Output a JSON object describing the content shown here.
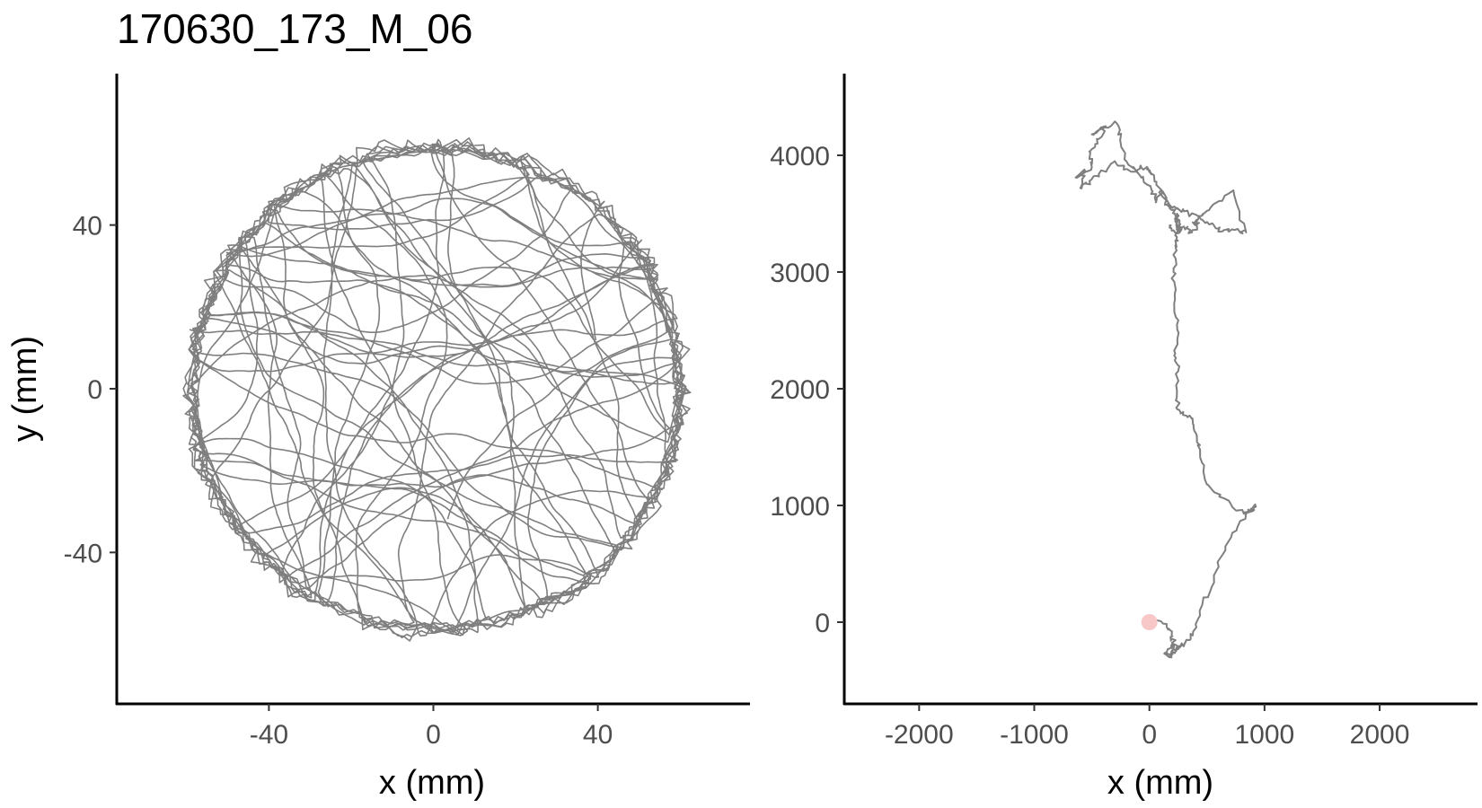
{
  "title": "170630_173_M_06",
  "colors": {
    "track": "#7f7f7f",
    "start_point": "#f8c8c8",
    "axis": "#000000",
    "tick_text": "#4d4d4d"
  },
  "chart_data": [
    {
      "type": "line",
      "panel": "left",
      "description_shape": "circular arena trajectory",
      "xlabel": "x (mm)",
      "ylabel": "y (mm)",
      "xlim": [
        -77,
        77
      ],
      "ylim": [
        -77,
        77
      ],
      "xticks": [
        -40,
        0,
        40
      ],
      "xtick_labels": [
        "-40",
        "0",
        "40"
      ],
      "yticks": [
        -40,
        0,
        40
      ],
      "ytick_labels": [
        "-40",
        "0",
        "40"
      ],
      "arena_radius": 62,
      "grid": false,
      "series": [
        {
          "kind": "trajectory",
          "color": "#7f7f7f"
        }
      ]
    },
    {
      "type": "line",
      "panel": "right",
      "xlabel": "x (mm)",
      "ylabel": "",
      "xlim": [
        -2650,
        2850
      ],
      "ylim": [
        -700,
        4700
      ],
      "xticks": [
        -2000,
        -1000,
        0,
        1000,
        2000
      ],
      "xtick_labels": [
        "-2000",
        "-1000",
        "0",
        "1000",
        "2000"
      ],
      "yticks": [
        0,
        1000,
        2000,
        3000,
        4000
      ],
      "ytick_labels": [
        "0",
        "1000",
        "2000",
        "3000",
        "4000"
      ],
      "grid": false,
      "start_point": {
        "x": 0,
        "y": 0,
        "color": "#f8c8c8"
      },
      "series": [
        {
          "kind": "trajectory",
          "color": "#7f7f7f",
          "x": [
            40,
            150,
            200,
            215,
            190,
            230,
            170,
            140,
            190,
            260,
            310,
            380,
            460,
            560,
            660,
            760,
            850,
            920,
            880,
            820,
            650,
            500,
            440,
            390,
            350,
            270,
            230,
            250,
            225,
            240,
            220,
            210,
            230,
            240,
            245,
            240,
            250,
            260,
            250,
            220,
            180,
            140,
            100,
            40,
            -20,
            -80,
            -160,
            -300,
            -440,
            -520,
            -600,
            -560,
            -640,
            -500,
            -520,
            -450,
            -380,
            -500,
            -300,
            -250,
            -200,
            -100,
            20,
            60,
            100,
            200,
            300,
            450,
            560,
            640,
            740,
            840,
            730,
            530,
            450,
            390,
            420,
            370,
            300,
            230,
            170
          ],
          "y": [
            20,
            -40,
            -120,
            -200,
            -260,
            -230,
            -300,
            -260,
            -200,
            -220,
            -180,
            -80,
            150,
            400,
            650,
            800,
            940,
            1000,
            950,
            930,
            1060,
            1180,
            1480,
            1640,
            1770,
            1800,
            1900,
            2150,
            2300,
            2550,
            2800,
            3000,
            3200,
            3300,
            3450,
            3500,
            3350,
            3400,
            3380,
            3500,
            3550,
            3600,
            3700,
            3830,
            3880,
            3900,
            3860,
            3950,
            3840,
            3780,
            3720,
            3870,
            3810,
            3900,
            4030,
            4100,
            4250,
            4180,
            4290,
            4150,
            3950,
            3850,
            3700,
            3600,
            3700,
            3550,
            3520,
            3450,
            3400,
            3350,
            3360,
            3340,
            3700,
            3550,
            3480,
            3420,
            3420,
            3340,
            3390,
            3330,
            3400
          ]
        }
      ]
    }
  ]
}
